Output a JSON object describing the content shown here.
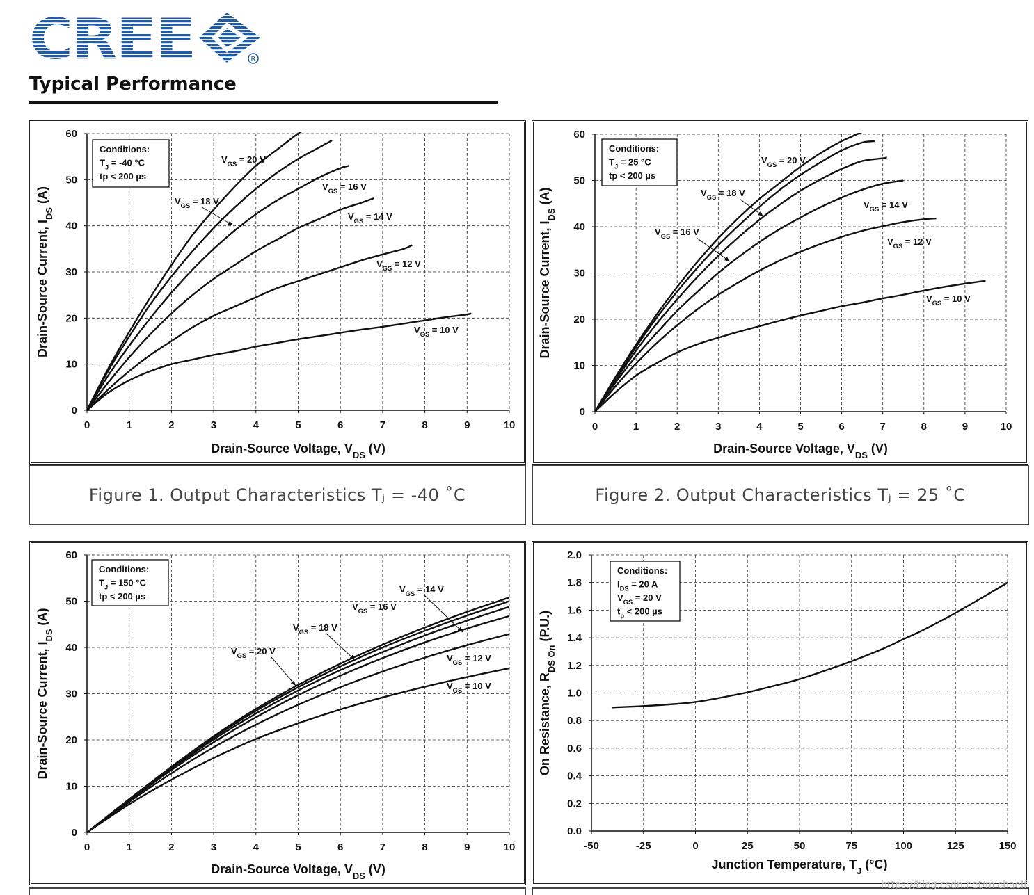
{
  "header": {
    "logo_text": "CREE",
    "title": "Typical Performance",
    "watermark": "https://blog.csdn.net/michaelf"
  },
  "colors": {
    "brand": "#1d5ca8",
    "ink": "#111111",
    "caption": "#444444"
  },
  "captions": [
    "Figure 1. Output Characteristics Tⱼ = -40 ˚C",
    "Figure 2. Output Characteristics Tⱼ = 25 ˚C"
  ],
  "chart_data": [
    {
      "type": "line",
      "xlabel": "Drain-Source Voltage, V_DS (V)",
      "ylabel": "Drain-Source Current, I_DS (A)",
      "xlim": [
        0,
        10
      ],
      "ylim": [
        0,
        60
      ],
      "xticks": [
        0,
        1,
        2,
        3,
        4,
        5,
        6,
        7,
        8,
        9,
        10
      ],
      "yticks": [
        0,
        10,
        20,
        30,
        40,
        50,
        60
      ],
      "grid": true,
      "conditions": [
        "Conditions:",
        "T_J = -40 °C",
        "tp < 200 µs"
      ],
      "series": [
        {
          "name": "V_GS = 20 V",
          "x": [
            0,
            0.5,
            1,
            1.5,
            2,
            2.5,
            3,
            3.5,
            4,
            4.5,
            5,
            5.5
          ],
          "y": [
            0,
            9,
            17,
            24.5,
            31.5,
            38,
            43.5,
            48.5,
            53,
            56.5,
            60,
            63
          ]
        },
        {
          "name": "V_GS = 18 V",
          "x": [
            0,
            0.5,
            1,
            1.5,
            2,
            2.5,
            3,
            3.5,
            4,
            4.5,
            5,
            5.5,
            5.8
          ],
          "y": [
            0,
            8.5,
            16,
            23,
            29,
            34.5,
            39.5,
            44,
            48,
            51.5,
            54.5,
            57,
            58.5
          ]
        },
        {
          "name": "V_GS = 16 V",
          "x": [
            0,
            0.5,
            1,
            1.5,
            2,
            2.5,
            3,
            3.5,
            4,
            4.5,
            5,
            5.5,
            6,
            6.2
          ],
          "y": [
            0,
            7.5,
            14,
            20,
            25.5,
            30.5,
            35,
            39,
            42.5,
            45.5,
            48,
            50.5,
            52.5,
            53
          ]
        },
        {
          "name": "V_GS = 14 V",
          "x": [
            0,
            0.5,
            1,
            1.5,
            2,
            2.5,
            3,
            3.5,
            4,
            4.5,
            5,
            5.5,
            6,
            6.5,
            6.8
          ],
          "y": [
            0,
            6,
            11.5,
            16.5,
            21,
            25,
            28.5,
            31.5,
            34.5,
            37,
            39.5,
            41.5,
            43.5,
            45,
            46
          ]
        },
        {
          "name": "V_GS = 12 V",
          "x": [
            0,
            0.5,
            1,
            1.5,
            2,
            2.5,
            3,
            3.5,
            4,
            4.5,
            5,
            5.5,
            6,
            6.5,
            7,
            7.5,
            7.7
          ],
          "y": [
            0,
            4.5,
            8.5,
            12,
            15,
            18,
            20.5,
            22.5,
            24.5,
            26.5,
            28,
            29.5,
            31,
            32.5,
            33.8,
            35,
            35.8
          ]
        },
        {
          "name": "V_GS = 10 V",
          "x": [
            0,
            0.5,
            1,
            1.5,
            2,
            2.5,
            3,
            3.5,
            4,
            4.5,
            5,
            5.5,
            6,
            6.5,
            7,
            7.5,
            8,
            8.5,
            9,
            9.1
          ],
          "y": [
            0,
            3.8,
            6.5,
            8.5,
            10,
            11,
            12,
            12.8,
            13.8,
            14.6,
            15.4,
            16.1,
            16.8,
            17.5,
            18.1,
            18.8,
            19.5,
            20.2,
            20.8,
            21
          ]
        }
      ],
      "series_labels": [
        "V_GS = 20 V",
        "V_GS = 18 V",
        "V_GS = 16 V",
        "V_GS = 14 V",
        "V_GS = 12 V",
        "V_GS = 10 V"
      ]
    },
    {
      "type": "line",
      "xlabel": "Drain-Source Voltage, V_DS (V)",
      "ylabel": "Drain-Source Current, I_DS (A)",
      "xlim": [
        0,
        10
      ],
      "ylim": [
        0,
        60
      ],
      "xticks": [
        0,
        1,
        2,
        3,
        4,
        5,
        6,
        7,
        8,
        9,
        10
      ],
      "yticks": [
        0,
        10,
        20,
        30,
        40,
        50,
        60
      ],
      "grid": true,
      "conditions": [
        "Conditions:",
        "T_J = 25 °C",
        "tp < 200 µs"
      ],
      "series": [
        {
          "name": "V_GS = 20 V",
          "x": [
            0,
            0.5,
            1,
            1.5,
            2,
            2.5,
            3,
            3.5,
            4,
            4.5,
            5,
            5.5,
            6,
            6.5,
            6.6
          ],
          "y": [
            0,
            7.5,
            14.5,
            21,
            27,
            32.5,
            37.5,
            42,
            46,
            49.5,
            53,
            56,
            58.5,
            60.5,
            61
          ]
        },
        {
          "name": "V_GS = 18 V",
          "x": [
            0,
            0.5,
            1,
            1.5,
            2,
            2.5,
            3,
            3.5,
            4,
            4.5,
            5,
            5.5,
            6,
            6.5,
            6.8
          ],
          "y": [
            0,
            7.2,
            14,
            20.3,
            26,
            31.2,
            36,
            40.3,
            44.3,
            48,
            51.2,
            54,
            56.5,
            58.2,
            58.5
          ]
        },
        {
          "name": "V_GS = 16 V",
          "x": [
            0,
            0.5,
            1,
            1.5,
            2,
            2.5,
            3,
            3.5,
            4,
            4.5,
            5,
            5.5,
            6,
            6.5,
            7,
            7.1
          ],
          "y": [
            0,
            6.8,
            13.2,
            19,
            24.3,
            29.2,
            33.7,
            37.8,
            41.5,
            44.8,
            47.8,
            50.3,
            52.5,
            54.2,
            54.8,
            55
          ]
        },
        {
          "name": "V_GS = 14 V",
          "x": [
            0,
            0.5,
            1,
            1.5,
            2,
            2.5,
            3,
            3.5,
            4,
            4.5,
            5,
            5.5,
            6,
            6.5,
            7,
            7.5
          ],
          "y": [
            0,
            6.3,
            12,
            17,
            21.8,
            26,
            30,
            33.5,
            36.7,
            39.5,
            42,
            44.3,
            46.3,
            48,
            49.3,
            50
          ]
        },
        {
          "name": "V_GS = 12 V",
          "x": [
            0,
            0.5,
            1,
            1.5,
            2,
            2.5,
            3,
            3.5,
            4,
            4.5,
            5,
            5.5,
            6,
            6.5,
            7,
            7.5,
            8,
            8.3
          ],
          "y": [
            0,
            5.5,
            10.4,
            14.8,
            18.7,
            22.2,
            25.3,
            28,
            30.5,
            32.7,
            34.6,
            36.3,
            37.8,
            39.1,
            40.1,
            41,
            41.6,
            41.8
          ]
        },
        {
          "name": "V_GS = 10 V",
          "x": [
            0,
            0.5,
            1,
            1.5,
            2,
            2.5,
            3,
            3.5,
            4,
            4.5,
            5,
            5.5,
            6,
            6.5,
            7,
            7.5,
            8,
            8.5,
            9,
            9.5
          ],
          "y": [
            0,
            4.2,
            7.8,
            10.5,
            12.8,
            14.6,
            16,
            17.3,
            18.5,
            19.7,
            20.8,
            21.8,
            22.8,
            23.6,
            24.5,
            25.3,
            26.2,
            27,
            27.7,
            28.3
          ]
        }
      ],
      "series_labels": [
        "V_GS = 20 V",
        "V_GS = 18 V",
        "V_GS = 16 V",
        "V_GS = 14 V",
        "V_GS = 12 V",
        "V_GS = 10 V"
      ]
    },
    {
      "type": "line",
      "xlabel": "Drain-Source Voltage, V_DS (V)",
      "ylabel": "Drain-Source Current, I_DS (A)",
      "xlim": [
        0,
        10
      ],
      "ylim": [
        0,
        60
      ],
      "xticks": [
        0,
        1,
        2,
        3,
        4,
        5,
        6,
        7,
        8,
        9,
        10
      ],
      "yticks": [
        0,
        10,
        20,
        30,
        40,
        50,
        60
      ],
      "grid": true,
      "conditions": [
        "Conditions:",
        "T_J = 150 °C",
        "tp < 200 µs"
      ],
      "series": [
        {
          "name": "V_GS = 20 V",
          "x": [
            0,
            1,
            2,
            3,
            4,
            5,
            6,
            7,
            8,
            9,
            10
          ],
          "y": [
            0,
            7.2,
            14.2,
            20.8,
            26.7,
            31.9,
            36.5,
            40.6,
            44.3,
            47.7,
            50.8
          ]
        },
        {
          "name": "V_GS = 18 V",
          "x": [
            0,
            1,
            2,
            3,
            4,
            5,
            6,
            7,
            8,
            9,
            10
          ],
          "y": [
            0,
            7.1,
            14,
            20.5,
            26.3,
            31.4,
            35.9,
            40,
            43.6,
            46.9,
            50
          ]
        },
        {
          "name": "V_GS = 16 V",
          "x": [
            0,
            1,
            2,
            3,
            4,
            5,
            6,
            7,
            8,
            9,
            10
          ],
          "y": [
            0,
            7,
            13.8,
            20.1,
            25.7,
            30.7,
            35.1,
            39,
            42.6,
            45.8,
            48.8
          ]
        },
        {
          "name": "V_GS = 14 V",
          "x": [
            0,
            1,
            2,
            3,
            4,
            5,
            6,
            7,
            8,
            9,
            10
          ],
          "y": [
            0,
            6.9,
            13.5,
            19.5,
            24.9,
            29.7,
            33.9,
            37.7,
            41.1,
            44.1,
            46.8
          ]
        },
        {
          "name": "V_GS = 12 V",
          "x": [
            0,
            1,
            2,
            3,
            4,
            5,
            6,
            7,
            8,
            9,
            10
          ],
          "y": [
            0,
            6.6,
            12.8,
            18.4,
            23.3,
            27.6,
            31.4,
            34.8,
            37.8,
            40.5,
            42.9
          ]
        },
        {
          "name": "V_GS = 10 V",
          "x": [
            0,
            1,
            2,
            3,
            4,
            5,
            6,
            7,
            8,
            9,
            10
          ],
          "y": [
            0,
            6.1,
            11.4,
            16.1,
            20.2,
            23.6,
            26.6,
            29.2,
            31.5,
            33.6,
            35.5
          ]
        }
      ],
      "series_labels": [
        "V_GS = 20 V",
        "V_GS = 18 V",
        "V_GS = 16 V",
        "V_GS = 14 V",
        "V_GS = 12 V",
        "V_GS = 10 V"
      ]
    },
    {
      "type": "line",
      "xlabel": "Junction Temperature, T_J (°C)",
      "ylabel": "On Resistance, R_DS On (P.U.)",
      "xlim": [
        -50,
        150
      ],
      "ylim": [
        0,
        2.0
      ],
      "xticks": [
        -50,
        -25,
        0,
        25,
        50,
        75,
        100,
        125,
        150
      ],
      "yticks": [
        0.0,
        0.2,
        0.4,
        0.6,
        0.8,
        1.0,
        1.2,
        1.4,
        1.6,
        1.8,
        2.0
      ],
      "grid": true,
      "conditions": [
        "Conditions:",
        "I_DS = 20 A",
        "V_GS = 20 V",
        "t_p < 200 µs"
      ],
      "series": [
        {
          "name": "",
          "x": [
            -40,
            -25,
            -10,
            0,
            10,
            25,
            40,
            50,
            60,
            75,
            90,
            100,
            110,
            125,
            140,
            150
          ],
          "y": [
            0.895,
            0.905,
            0.92,
            0.935,
            0.96,
            1.005,
            1.06,
            1.1,
            1.15,
            1.23,
            1.32,
            1.39,
            1.46,
            1.58,
            1.71,
            1.8
          ]
        }
      ]
    }
  ]
}
